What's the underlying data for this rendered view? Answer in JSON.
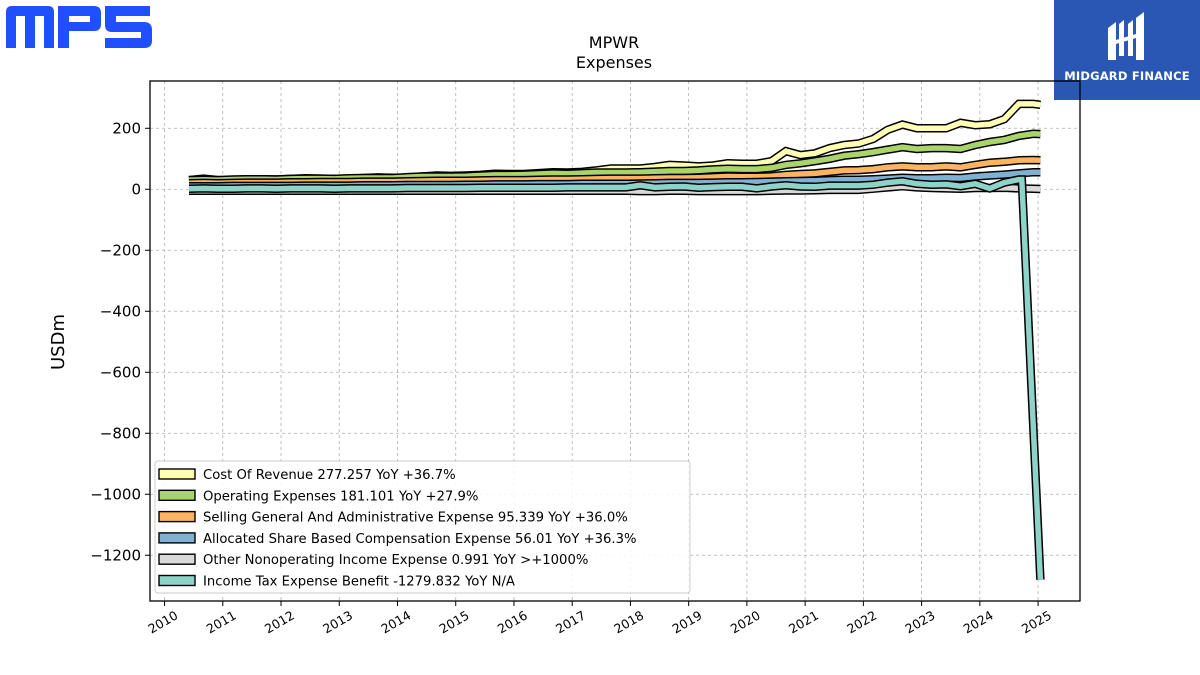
{
  "brand": {
    "left_logo_text": "MPS",
    "right_logo_text": "MIDGARD FINANCE",
    "left_logo_color": "#1f4fff",
    "right_logo_bg": "#2a57b3"
  },
  "chart_data": {
    "type": "line",
    "title": "MPWR",
    "subtitle": "Expenses",
    "xlabel": "",
    "ylabel": "USDm",
    "xlim": [
      2009.75,
      2025.72
    ],
    "ylim": [
      -1350,
      355
    ],
    "yticks": [
      200,
      0,
      -200,
      -400,
      -600,
      -800,
      -1000,
      -1200
    ],
    "ytick_labels": [
      "200",
      "0",
      "−200",
      "−400",
      "−600",
      "−800",
      "−1000",
      "−1200"
    ],
    "xticks": [
      2010,
      2011,
      2012,
      2013,
      2014,
      2015,
      2016,
      2017,
      2018,
      2019,
      2020,
      2021,
      2022,
      2023,
      2024,
      2025
    ],
    "xtick_labels": [
      "2010",
      "2011",
      "2012",
      "2013",
      "2014",
      "2015",
      "2016",
      "2017",
      "2018",
      "2019",
      "2020",
      "2021",
      "2022",
      "2023",
      "2024",
      "2025"
    ],
    "grid": true,
    "legend_position": "lower-left",
    "series": [
      {
        "name": "Cost Of Revenue",
        "legend_label": "Cost Of Revenue  277.257 YoY +36.7%",
        "color": "#ffffb3",
        "x": [
          2010.42,
          2010.67,
          2010.92,
          2011.17,
          2011.42,
          2011.67,
          2011.92,
          2012.17,
          2012.42,
          2012.67,
          2012.92,
          2013.17,
          2013.42,
          2013.67,
          2013.92,
          2014.17,
          2014.42,
          2014.67,
          2014.92,
          2015.17,
          2015.42,
          2015.67,
          2015.92,
          2016.17,
          2016.42,
          2016.67,
          2016.92,
          2017.17,
          2017.42,
          2017.67,
          2017.92,
          2018.17,
          2018.42,
          2018.67,
          2018.92,
          2019.17,
          2019.42,
          2019.67,
          2019.92,
          2020.17,
          2020.42,
          2020.67,
          2020.92,
          2021.17,
          2021.42,
          2021.67,
          2021.92,
          2022.17,
          2022.42,
          2022.67,
          2022.92,
          2023.17,
          2023.42,
          2023.67,
          2023.92,
          2024.17,
          2024.42,
          2024.67,
          2024.92,
          2025.04
        ],
        "y": [
          30,
          35,
          30,
          30,
          33,
          33,
          32,
          34,
          36,
          35,
          34,
          35,
          37,
          39,
          38,
          38,
          42,
          45,
          44,
          45,
          47,
          51,
          50,
          50,
          53,
          56,
          55,
          57,
          62,
          68,
          68,
          68,
          73,
          80,
          78,
          75,
          78,
          85,
          84,
          84,
          92,
          125,
          112,
          118,
          135,
          145,
          150,
          165,
          195,
          212,
          200,
          200,
          200,
          218,
          210,
          213,
          230,
          280,
          280,
          277
        ]
      },
      {
        "name": "Operating Expenses",
        "legend_label": "Operating Expenses  181.101 YoY +27.9%",
        "color": "#a9d36b",
        "x": [
          2010.42,
          2010.67,
          2010.92,
          2011.17,
          2011.42,
          2011.67,
          2011.92,
          2012.17,
          2012.42,
          2012.67,
          2012.92,
          2013.17,
          2013.42,
          2013.67,
          2013.92,
          2014.17,
          2014.42,
          2014.67,
          2014.92,
          2015.17,
          2015.42,
          2015.67,
          2015.92,
          2016.17,
          2016.42,
          2016.67,
          2016.92,
          2017.17,
          2017.42,
          2017.67,
          2017.92,
          2018.17,
          2018.42,
          2018.67,
          2018.92,
          2019.17,
          2019.42,
          2019.67,
          2019.92,
          2020.17,
          2020.42,
          2020.67,
          2020.92,
          2021.17,
          2021.42,
          2021.67,
          2021.92,
          2022.17,
          2022.42,
          2022.67,
          2022.92,
          2023.17,
          2023.42,
          2023.67,
          2023.92,
          2024.17,
          2024.42,
          2024.67,
          2024.92,
          2025.04
        ],
        "y": [
          30,
          31,
          30,
          32,
          33,
          33,
          32,
          34,
          35,
          35,
          34,
          36,
          37,
          37,
          37,
          40,
          42,
          42,
          42,
          43,
          45,
          47,
          47,
          48,
          50,
          52,
          51,
          53,
          55,
          55,
          55,
          56,
          58,
          60,
          60,
          62,
          65,
          67,
          66,
          66,
          70,
          80,
          85,
          92,
          100,
          110,
          115,
          122,
          130,
          138,
          132,
          135,
          135,
          132,
          145,
          155,
          162,
          175,
          182,
          181
        ]
      },
      {
        "name": "Selling General And Administrative Expense",
        "legend_label": "Selling General And Administrative Expense  95.339 YoY +36.0%",
        "color": "#fdb462",
        "x": [
          2010.42,
          2010.67,
          2010.92,
          2011.17,
          2011.42,
          2011.67,
          2011.92,
          2012.17,
          2012.42,
          2012.67,
          2012.92,
          2013.17,
          2013.42,
          2013.67,
          2013.92,
          2014.17,
          2014.42,
          2014.67,
          2014.92,
          2015.17,
          2015.42,
          2015.67,
          2015.92,
          2016.17,
          2016.42,
          2016.67,
          2016.92,
          2017.17,
          2017.42,
          2017.67,
          2017.92,
          2018.17,
          2018.42,
          2018.67,
          2018.92,
          2019.17,
          2019.42,
          2019.67,
          2019.92,
          2020.17,
          2020.42,
          2020.67,
          2020.92,
          2021.17,
          2021.42,
          2021.67,
          2021.92,
          2022.17,
          2022.42,
          2022.67,
          2022.92,
          2023.17,
          2023.42,
          2023.67,
          2023.92,
          2024.17,
          2024.42,
          2024.67,
          2024.92,
          2025.04
        ],
        "y": [
          20,
          21,
          20,
          21,
          22,
          22,
          22,
          23,
          23,
          24,
          24,
          24,
          25,
          25,
          25,
          26,
          27,
          28,
          28,
          28,
          29,
          30,
          30,
          30,
          31,
          32,
          32,
          33,
          34,
          35,
          35,
          35,
          36,
          37,
          37,
          38,
          40,
          42,
          41,
          41,
          43,
          47,
          50,
          52,
          57,
          62,
          63,
          66,
          72,
          75,
          72,
          72,
          75,
          72,
          80,
          87,
          90,
          95,
          96,
          95
        ]
      },
      {
        "name": "Allocated Share Based Compensation Expense",
        "legend_label": "Allocated Share Based Compensation Expense  56.01 YoY +36.3%",
        "color": "#80b1d3",
        "x": [
          2010.42,
          2010.67,
          2010.92,
          2011.17,
          2011.42,
          2011.67,
          2011.92,
          2012.17,
          2012.42,
          2012.67,
          2012.92,
          2013.17,
          2013.42,
          2013.67,
          2013.92,
          2014.17,
          2014.42,
          2014.67,
          2014.92,
          2015.17,
          2015.42,
          2015.67,
          2015.92,
          2016.17,
          2016.42,
          2016.67,
          2016.92,
          2017.17,
          2017.42,
          2017.67,
          2017.92,
          2018.17,
          2018.42,
          2018.67,
          2018.92,
          2019.17,
          2019.42,
          2019.67,
          2019.92,
          2020.17,
          2020.42,
          2020.67,
          2020.92,
          2021.17,
          2021.42,
          2021.67,
          2021.92,
          2022.17,
          2022.42,
          2022.67,
          2022.92,
          2023.17,
          2023.42,
          2023.67,
          2023.92,
          2024.17,
          2024.42,
          2024.67,
          2024.92,
          2025.04
        ],
        "y": [
          10,
          10,
          10,
          11,
          11,
          11,
          11,
          11,
          12,
          12,
          12,
          12,
          13,
          13,
          13,
          14,
          14,
          14,
          14,
          15,
          15,
          16,
          16,
          16,
          17,
          17,
          17,
          18,
          18,
          18,
          18,
          19,
          20,
          21,
          21,
          21,
          22,
          23,
          23,
          24,
          25,
          26,
          27,
          28,
          30,
          31,
          31,
          33,
          35,
          38,
          36,
          36,
          38,
          37,
          42,
          45,
          48,
          52,
          56,
          56
        ]
      },
      {
        "name": "Other Nonoperating Income Expense",
        "legend_label": "Other Nonoperating Income Expense  0.991 YoY >+1000%",
        "color": "#d9d9d9",
        "x": [
          2010.42,
          2010.67,
          2010.92,
          2011.17,
          2011.42,
          2011.67,
          2011.92,
          2012.17,
          2012.42,
          2012.67,
          2012.92,
          2013.17,
          2013.42,
          2013.67,
          2013.92,
          2014.17,
          2014.42,
          2014.67,
          2014.92,
          2015.17,
          2015.42,
          2015.67,
          2015.92,
          2016.17,
          2016.42,
          2016.67,
          2016.92,
          2017.17,
          2017.42,
          2017.67,
          2017.92,
          2018.17,
          2018.42,
          2018.67,
          2018.92,
          2019.17,
          2019.42,
          2019.67,
          2019.92,
          2020.17,
          2020.42,
          2020.67,
          2020.92,
          2021.17,
          2021.42,
          2021.67,
          2021.92,
          2022.17,
          2022.42,
          2022.67,
          2022.92,
          2023.17,
          2023.42,
          2023.67,
          2023.92,
          2024.17,
          2024.42,
          2024.67,
          2024.92,
          2025.04
        ],
        "y": [
          -5,
          -5,
          -5,
          -5,
          -5,
          -5,
          -5,
          -5,
          -5,
          -5,
          -5,
          -5,
          -5,
          -5,
          -5,
          -5,
          -5,
          -5,
          -5,
          -5,
          -5,
          -5,
          -5,
          -5,
          -5,
          -5,
          -5,
          -5,
          -5,
          -5,
          -5,
          -6,
          -6,
          -5,
          -5,
          -6,
          -6,
          -6,
          -6,
          -6,
          -5,
          -4,
          -4,
          -3,
          -2,
          -2,
          -2,
          2,
          6,
          10,
          6,
          4,
          3,
          2,
          4,
          4,
          5,
          3,
          2,
          1
        ]
      },
      {
        "name": "Income Tax Expense Benefit",
        "legend_label": "Income Tax Expense Benefit  -1279.832 YoY N/A",
        "color": "#8dd3c7",
        "x": [
          2010.42,
          2010.67,
          2010.92,
          2011.17,
          2011.42,
          2011.67,
          2011.92,
          2012.17,
          2012.42,
          2012.67,
          2012.92,
          2013.17,
          2013.42,
          2013.67,
          2013.92,
          2014.17,
          2014.42,
          2014.67,
          2014.92,
          2015.17,
          2015.42,
          2015.67,
          2015.92,
          2016.17,
          2016.42,
          2016.67,
          2016.92,
          2017.17,
          2017.42,
          2017.67,
          2017.92,
          2018.17,
          2018.42,
          2018.67,
          2018.92,
          2019.17,
          2019.42,
          2019.67,
          2019.92,
          2020.17,
          2020.42,
          2020.67,
          2020.92,
          2021.17,
          2021.42,
          2021.67,
          2021.92,
          2022.17,
          2022.42,
          2022.67,
          2022.92,
          2023.17,
          2023.42,
          2023.67,
          2023.92,
          2024.17,
          2024.42,
          2024.67,
          2024.72,
          2025.04
        ],
        "y": [
          2,
          3,
          2,
          2,
          3,
          3,
          2,
          3,
          3,
          3,
          2,
          3,
          3,
          3,
          3,
          4,
          4,
          4,
          4,
          4,
          5,
          5,
          5,
          5,
          5,
          5,
          6,
          6,
          6,
          6,
          6,
          13,
          6,
          8,
          9,
          5,
          7,
          8,
          8,
          3,
          9,
          13,
          9,
          8,
          12,
          12,
          12,
          15,
          22,
          26,
          18,
          15,
          16,
          10,
          18,
          3,
          22,
          32,
          32,
          -1280
        ]
      }
    ]
  }
}
